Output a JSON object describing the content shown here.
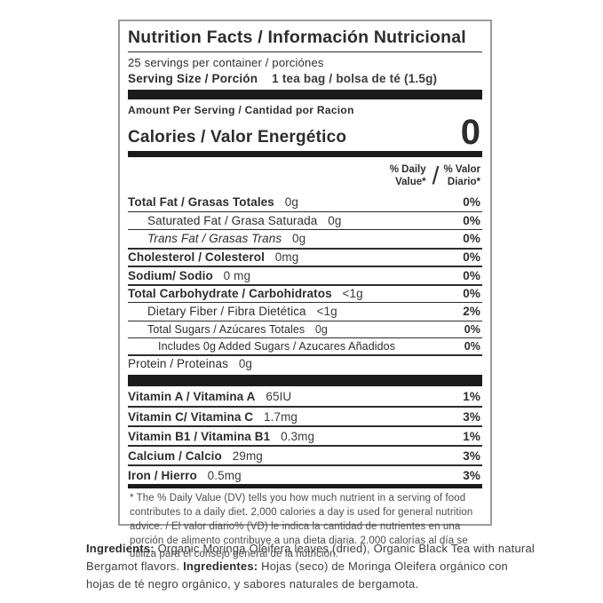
{
  "label": {
    "title": "Nutrition Facts / Información Nutricional",
    "servings_line": "25 servings per container / porciónes",
    "serving_size_label": "Serving Size / Porción",
    "serving_size_value": "1 tea bag / bolsa de té (1.5g)",
    "amount_per_serving": "Amount Per Serving / Cantidad por Racion",
    "calories_label": "Calories / Valor Energético",
    "calories_value": "0",
    "dv_header": {
      "en_line1": "% Daily",
      "en_line2": "Value*",
      "slash": "/",
      "es_line1": "% Valor",
      "es_line2": "Diario*"
    },
    "nutrient_rows": [
      {
        "label": "Total Fat / Grasas Totales",
        "amount": "0g",
        "dv": "0%"
      },
      {
        "label": "Saturated Fat / Grasa Saturada",
        "amount": "0g",
        "dv": "0%"
      },
      {
        "label": "Trans Fat / Grasas Trans",
        "amount": "0g",
        "dv": "0%"
      },
      {
        "label": "Cholesterol / Colesterol",
        "amount": "0mg",
        "dv": "0%"
      },
      {
        "label": "Sodium/ Sodio",
        "amount": "0 mg",
        "dv": "0%"
      },
      {
        "label": "Total Carbohydrate / Carbohidratos",
        "amount": "<1g",
        "dv": "0%"
      },
      {
        "label": "Dietary Fiber / Fibra Dietética",
        "amount": "<1g",
        "dv": "2%"
      },
      {
        "label": "Total Sugars / Azúcares Totales",
        "amount": "0g",
        "dv": "0%"
      },
      {
        "label": "Includes 0g Added Sugars / Azucares Añadidos",
        "amount": "",
        "dv": "0%"
      },
      {
        "label": "Protein / Proteinas",
        "amount": "0g",
        "dv": ""
      }
    ],
    "vitamin_rows": [
      {
        "label": "Vitamin A / Vitamina A",
        "amount": "65IU",
        "dv": "1%"
      },
      {
        "label": "Vitamin C/ Vitamina C",
        "amount": "1.7mg",
        "dv": "3%"
      },
      {
        "label": "Vitamin B1 / Vitamina B1",
        "amount": "0.3mg",
        "dv": "1%"
      },
      {
        "label": "Calcium / Calcio",
        "amount": "29mg",
        "dv": "3%"
      },
      {
        "label": "Iron / Hierro",
        "amount": "0.5mg",
        "dv": "3%"
      }
    ],
    "footnote": "* The % Daily Value (DV) tells you how much nutrient in a serving of food contributes to a daily diet. 2,000 calories a day is used for general nutrition advice. / El valor diario% (VD) le indica la cantidad de nutrientes en una porción de alimento contribuye a una dieta diaria. 2.000 calorías al día se utiliza para el consejo general de la nutrición."
  },
  "ingredients": {
    "en_label": "Ingredients:",
    "en_text": " Organic Moringa Oleifera leaves (dried), Organic Black Tea with natural Bergamot flavors. ",
    "es_label": "Ingredientes:",
    "es_text": " Hojas (seco) de Moringa Oleifera orgánico con hojas de té negro orgánico, y sabores naturales de bergamota."
  },
  "colors": {
    "text": "#2d2d2d",
    "bar": "#1b1b1b",
    "box_border": "#9b9b9b"
  }
}
